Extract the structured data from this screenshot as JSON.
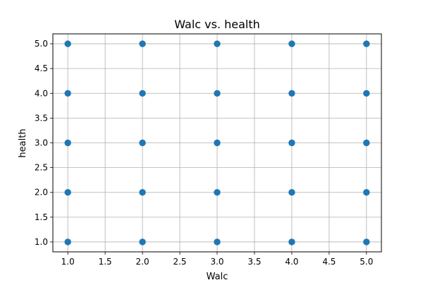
{
  "chart_data": {
    "type": "scatter",
    "title": "Walc vs. health",
    "xlabel": "Walc",
    "ylabel": "health",
    "xlim": [
      0.8,
      5.2
    ],
    "ylim": [
      0.8,
      5.2
    ],
    "xticks": [
      1.0,
      1.5,
      2.0,
      2.5,
      3.0,
      3.5,
      4.0,
      4.5,
      5.0
    ],
    "xtick_labels": [
      "1.0",
      "1.5",
      "2.0",
      "2.5",
      "3.0",
      "3.5",
      "4.0",
      "4.5",
      "5.0"
    ],
    "yticks": [
      1.0,
      1.5,
      2.0,
      2.5,
      3.0,
      3.5,
      4.0,
      4.5,
      5.0
    ],
    "ytick_labels": [
      "1.0",
      "1.5",
      "2.0",
      "2.5",
      "3.0",
      "3.5",
      "4.0",
      "4.5",
      "5.0"
    ],
    "grid": true,
    "marker_color": "#1f77b4",
    "series": [
      {
        "points": [
          {
            "x": 1,
            "y": 1
          },
          {
            "x": 1,
            "y": 2
          },
          {
            "x": 1,
            "y": 3
          },
          {
            "x": 1,
            "y": 4
          },
          {
            "x": 1,
            "y": 5
          },
          {
            "x": 2,
            "y": 1
          },
          {
            "x": 2,
            "y": 2
          },
          {
            "x": 2,
            "y": 3
          },
          {
            "x": 2,
            "y": 4
          },
          {
            "x": 2,
            "y": 5
          },
          {
            "x": 3,
            "y": 1
          },
          {
            "x": 3,
            "y": 2
          },
          {
            "x": 3,
            "y": 3
          },
          {
            "x": 3,
            "y": 4
          },
          {
            "x": 3,
            "y": 5
          },
          {
            "x": 4,
            "y": 1
          },
          {
            "x": 4,
            "y": 2
          },
          {
            "x": 4,
            "y": 3
          },
          {
            "x": 4,
            "y": 4
          },
          {
            "x": 4,
            "y": 5
          },
          {
            "x": 5,
            "y": 1
          },
          {
            "x": 5,
            "y": 2
          },
          {
            "x": 5,
            "y": 3
          },
          {
            "x": 5,
            "y": 4
          },
          {
            "x": 5,
            "y": 5
          }
        ]
      }
    ]
  }
}
